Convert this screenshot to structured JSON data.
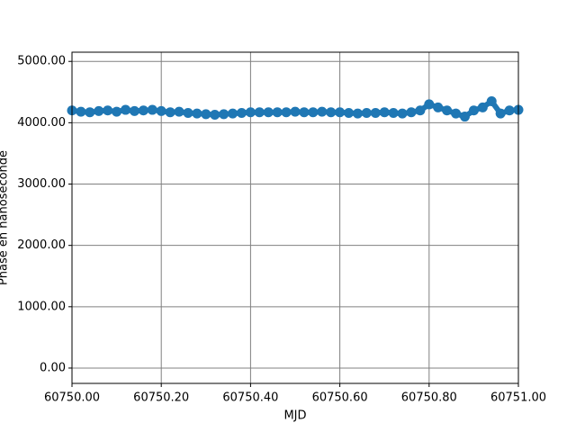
{
  "chart_data": {
    "type": "line",
    "xlabel": "MJD",
    "ylabel": "Phase en nanoseconde",
    "x": [
      60750.0,
      60750.02,
      60750.04,
      60750.06,
      60750.08,
      60750.1,
      60750.12,
      60750.14,
      60750.16,
      60750.18,
      60750.2,
      60750.22,
      60750.24,
      60750.26,
      60750.28,
      60750.3,
      60750.32,
      60750.34,
      60750.36,
      60750.38,
      60750.4,
      60750.42,
      60750.44,
      60750.46,
      60750.48,
      60750.5,
      60750.52,
      60750.54,
      60750.56,
      60750.58,
      60750.6,
      60750.62,
      60750.64,
      60750.66,
      60750.68,
      60750.7,
      60750.72,
      60750.74,
      60750.76,
      60750.78,
      60750.8,
      60750.82,
      60750.84,
      60750.86,
      60750.88,
      60750.9,
      60750.92,
      60750.94,
      60750.96,
      60750.98,
      60751.0
    ],
    "series": [
      {
        "color": "#1f77b4",
        "values": [
          4200,
          4180,
          4170,
          4190,
          4200,
          4180,
          4210,
          4190,
          4200,
          4210,
          4190,
          4170,
          4180,
          4160,
          4150,
          4140,
          4130,
          4140,
          4150,
          4160,
          4170,
          4170,
          4170,
          4170,
          4170,
          4180,
          4170,
          4170,
          4180,
          4170,
          4170,
          4160,
          4150,
          4160,
          4160,
          4170,
          4160,
          4150,
          4170,
          4200,
          4300,
          4250,
          4200,
          4150,
          4100,
          4200,
          4250,
          4350,
          4150,
          4200,
          4210
        ]
      }
    ],
    "xlim": [
      60750.0,
      60751.0
    ],
    "xticks": [
      {
        "value": 60750.0,
        "label": "60750.00"
      },
      {
        "value": 60750.2,
        "label": "60750.20"
      },
      {
        "value": 60750.4,
        "label": "60750.40"
      },
      {
        "value": 60750.6,
        "label": "60750.60"
      },
      {
        "value": 60750.8,
        "label": "60750.80"
      },
      {
        "value": 60751.0,
        "label": "60751.00"
      }
    ],
    "ylim": [
      -250,
      5150
    ],
    "yticks": [
      {
        "value": 0,
        "label": "0.00"
      },
      {
        "value": 1000,
        "label": "1000.00"
      },
      {
        "value": 2000,
        "label": "2000.00"
      },
      {
        "value": 3000,
        "label": "3000.00"
      },
      {
        "value": 4000,
        "label": "4000.00"
      },
      {
        "value": 5000,
        "label": "5000.00"
      }
    ],
    "grid": true
  }
}
